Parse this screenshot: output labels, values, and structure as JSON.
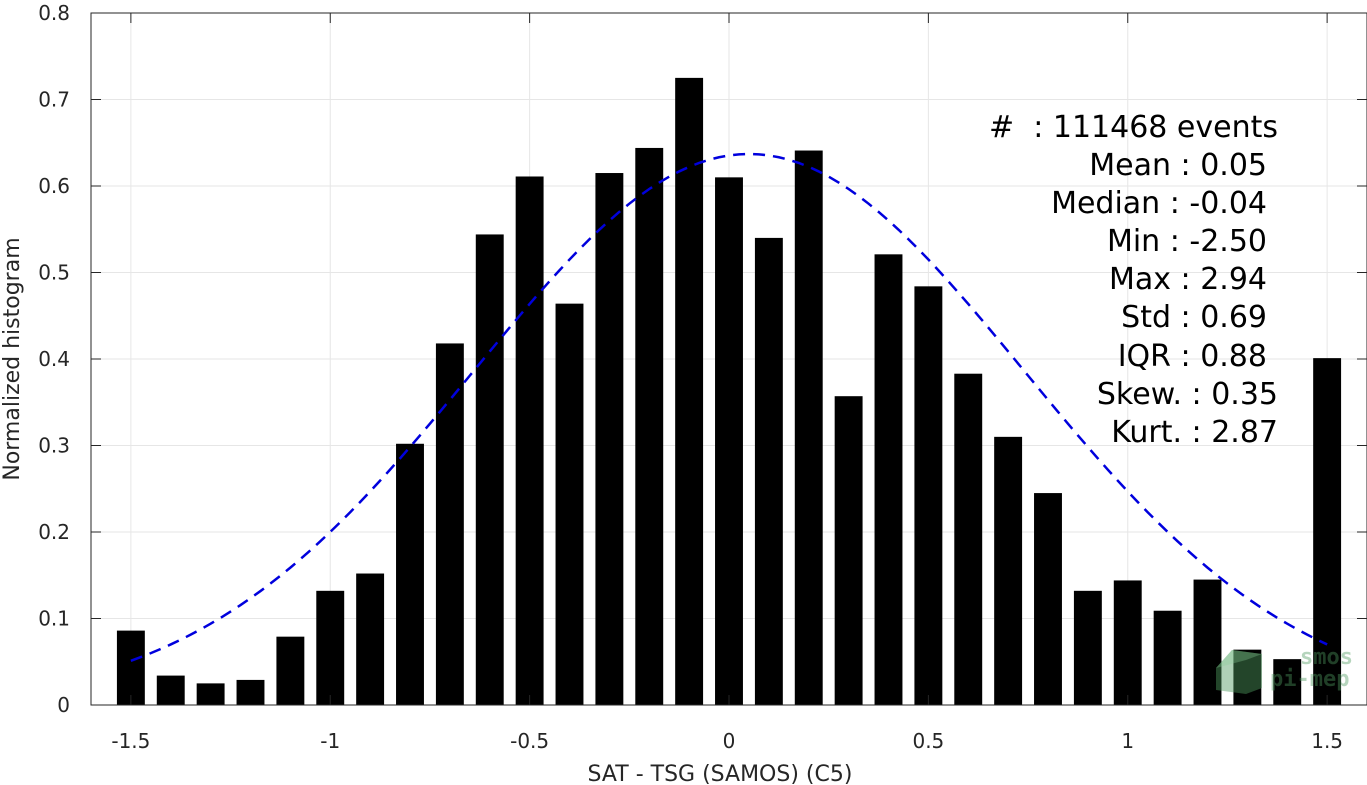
{
  "chart_data": {
    "type": "bar",
    "xlabel": "SAT - TSG (SAMOS) (C5)",
    "ylabel": "Normalized histogram",
    "xlim": [
      -1.6,
      1.6
    ],
    "ylim": [
      0,
      0.8
    ],
    "grid": true,
    "x_ticks": [
      {
        "value": -1.5,
        "label": "-1.5"
      },
      {
        "value": -1.0,
        "label": "-1"
      },
      {
        "value": -0.5,
        "label": "-0.5"
      },
      {
        "value": 0.0,
        "label": "0"
      },
      {
        "value": 0.5,
        "label": "0.5"
      },
      {
        "value": 1.0,
        "label": "1"
      },
      {
        "value": 1.5,
        "label": "1.5"
      }
    ],
    "y_ticks": [
      {
        "value": 0.0,
        "label": "0"
      },
      {
        "value": 0.1,
        "label": "0.1"
      },
      {
        "value": 0.2,
        "label": "0.2"
      },
      {
        "value": 0.3,
        "label": "0.3"
      },
      {
        "value": 0.4,
        "label": "0.4"
      },
      {
        "value": 0.5,
        "label": "0.5"
      },
      {
        "value": 0.6,
        "label": "0.6"
      },
      {
        "value": 0.7,
        "label": "0.7"
      },
      {
        "value": 0.8,
        "label": "0.8"
      }
    ],
    "bar_color": "#000000",
    "bin_width": 0.1,
    "bars": {
      "x": [
        -1.5,
        -1.4,
        -1.3,
        -1.2,
        -1.1,
        -1.0,
        -0.9,
        -0.8,
        -0.7,
        -0.6,
        -0.5,
        -0.4,
        -0.3,
        -0.2,
        -0.1,
        0.0,
        0.1,
        0.2,
        0.3,
        0.4,
        0.5,
        0.6,
        0.7,
        0.8,
        0.9,
        1.0,
        1.1,
        1.2,
        1.3,
        1.4,
        1.5
      ],
      "values": [
        0.086,
        0.034,
        0.025,
        0.029,
        0.079,
        0.132,
        0.152,
        0.302,
        0.418,
        0.544,
        0.611,
        0.464,
        0.615,
        0.644,
        0.725,
        0.61,
        0.54,
        0.641,
        0.357,
        0.521,
        0.484,
        0.383,
        0.31,
        0.245,
        0.132,
        0.144,
        0.109,
        0.145,
        0.064,
        0.053,
        0.401
      ]
    },
    "fit_curve": {
      "style": "dashed",
      "color": "#0000dd",
      "distribution": "normal",
      "mean": 0.05,
      "std": 0.69,
      "peak": 0.637,
      "x_range": [
        -1.5,
        1.5
      ]
    }
  },
  "stats": {
    "events": "#  : 111468 events",
    "mean": "Mean : 0.05",
    "median": "Median : -0.04",
    "min": "Min : -2.50",
    "max": "Max : 2.94",
    "std": "Std : 0.69",
    "iqr": "IQR : 0.88",
    "skew": "Skew. : 0.35",
    "kurt": "Kurt. : 2.87"
  },
  "watermark": {
    "line1": "smos",
    "line2": "pi-mep",
    "color": "#4f9a5f"
  }
}
